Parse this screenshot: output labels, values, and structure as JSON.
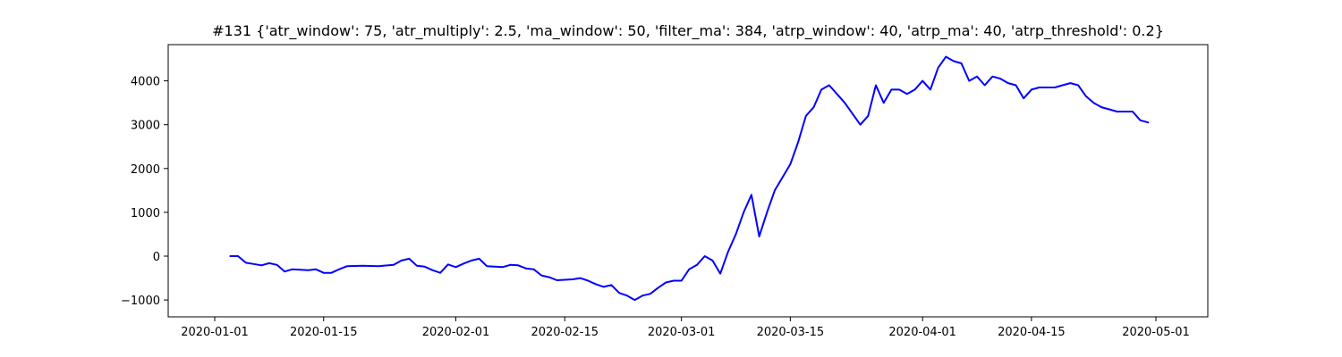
{
  "chart_data": {
    "type": "line",
    "title": "#131 {'atr_window': 75, 'atr_multiply': 2.5, 'ma_window': 50, 'filter_ma': 384, 'atrp_window': 40, 'atrp_ma': 40, 'atrp_threshold': 0.2}",
    "xlabel": "",
    "ylabel": "",
    "x_type": "date",
    "xlim": [
      "2020-01-01",
      "2020-05-01"
    ],
    "ylim": [
      -1000,
      4000
    ],
    "x_ticks": [
      "2020-01-01",
      "2020-01-15",
      "2020-02-01",
      "2020-02-15",
      "2020-03-01",
      "2020-03-15",
      "2020-04-01",
      "2020-04-15",
      "2020-05-01"
    ],
    "y_ticks": [
      -1000,
      0,
      1000,
      2000,
      3000,
      4000
    ],
    "grid": false,
    "legend": "none",
    "colors": {
      "series": "#0000ff",
      "axes": "#000000",
      "background": "#ffffff"
    },
    "series": [
      {
        "x": [
          "2020-01-03",
          "2020-01-04",
          "2020-01-05",
          "2020-01-06",
          "2020-01-07",
          "2020-01-08",
          "2020-01-09",
          "2020-01-10",
          "2020-01-11",
          "2020-01-12",
          "2020-01-13",
          "2020-01-14",
          "2020-01-15",
          "2020-01-16",
          "2020-01-17",
          "2020-01-18",
          "2020-01-20",
          "2020-01-22",
          "2020-01-24",
          "2020-01-25",
          "2020-01-26",
          "2020-01-27",
          "2020-01-28",
          "2020-01-29",
          "2020-01-30",
          "2020-01-31",
          "2020-02-01",
          "2020-02-02",
          "2020-02-03",
          "2020-02-04",
          "2020-02-05",
          "2020-02-06",
          "2020-02-07",
          "2020-02-08",
          "2020-02-09",
          "2020-02-10",
          "2020-02-11",
          "2020-02-12",
          "2020-02-13",
          "2020-02-14",
          "2020-02-15",
          "2020-02-16",
          "2020-02-17",
          "2020-02-18",
          "2020-02-19",
          "2020-02-20",
          "2020-02-21",
          "2020-02-22",
          "2020-02-23",
          "2020-02-24",
          "2020-02-25",
          "2020-02-26",
          "2020-02-27",
          "2020-02-28",
          "2020-02-29",
          "2020-03-01",
          "2020-03-02",
          "2020-03-03",
          "2020-03-04",
          "2020-03-05",
          "2020-03-06",
          "2020-03-07",
          "2020-03-08",
          "2020-03-09",
          "2020-03-10",
          "2020-03-11",
          "2020-03-12",
          "2020-03-13",
          "2020-03-14",
          "2020-03-15",
          "2020-03-16",
          "2020-03-17",
          "2020-03-18",
          "2020-03-19",
          "2020-03-20",
          "2020-03-21",
          "2020-03-22",
          "2020-03-23",
          "2020-03-24",
          "2020-03-25",
          "2020-03-26",
          "2020-03-27",
          "2020-03-28",
          "2020-03-29",
          "2020-03-30",
          "2020-03-31",
          "2020-04-01",
          "2020-04-02",
          "2020-04-03",
          "2020-04-04",
          "2020-04-05",
          "2020-04-06",
          "2020-04-07",
          "2020-04-08",
          "2020-04-09",
          "2020-04-10",
          "2020-04-11",
          "2020-04-12",
          "2020-04-13",
          "2020-04-14",
          "2020-04-15",
          "2020-04-16",
          "2020-04-17",
          "2020-04-18",
          "2020-04-19",
          "2020-04-20",
          "2020-04-21",
          "2020-04-22",
          "2020-04-23",
          "2020-04-24",
          "2020-04-25",
          "2020-04-26",
          "2020-04-27",
          "2020-04-28",
          "2020-04-29",
          "2020-04-30"
        ],
        "y": [
          0,
          0,
          -150,
          -180,
          -210,
          -160,
          -200,
          -350,
          -300,
          -310,
          -320,
          -300,
          -380,
          -380,
          -300,
          -230,
          -220,
          -230,
          -200,
          -100,
          -60,
          -220,
          -240,
          -320,
          -380,
          -190,
          -250,
          -170,
          -100,
          -60,
          -230,
          -240,
          -250,
          -200,
          -210,
          -280,
          -300,
          -440,
          -480,
          -550,
          -540,
          -530,
          -500,
          -560,
          -640,
          -700,
          -660,
          -840,
          -900,
          -1000,
          -900,
          -860,
          -720,
          -600,
          -560,
          -560,
          -300,
          -200,
          0,
          -100,
          -400,
          100,
          500,
          1000,
          1400,
          450,
          1000,
          1500,
          1800,
          2100,
          2600,
          3200,
          3400,
          3800,
          3900,
          3700,
          3500,
          3250,
          3000,
          3200,
          3900,
          3500,
          3800,
          3800,
          3700,
          3800,
          4000,
          3800,
          4300,
          4550,
          4450,
          4400,
          4000,
          4100,
          3900,
          4100,
          4050,
          3950,
          3900,
          3600,
          3800,
          3850,
          3850,
          3850,
          3900,
          3950,
          3900,
          3650,
          3500,
          3400,
          3350,
          3300,
          3300,
          3300,
          3100,
          3050
        ]
      }
    ]
  }
}
